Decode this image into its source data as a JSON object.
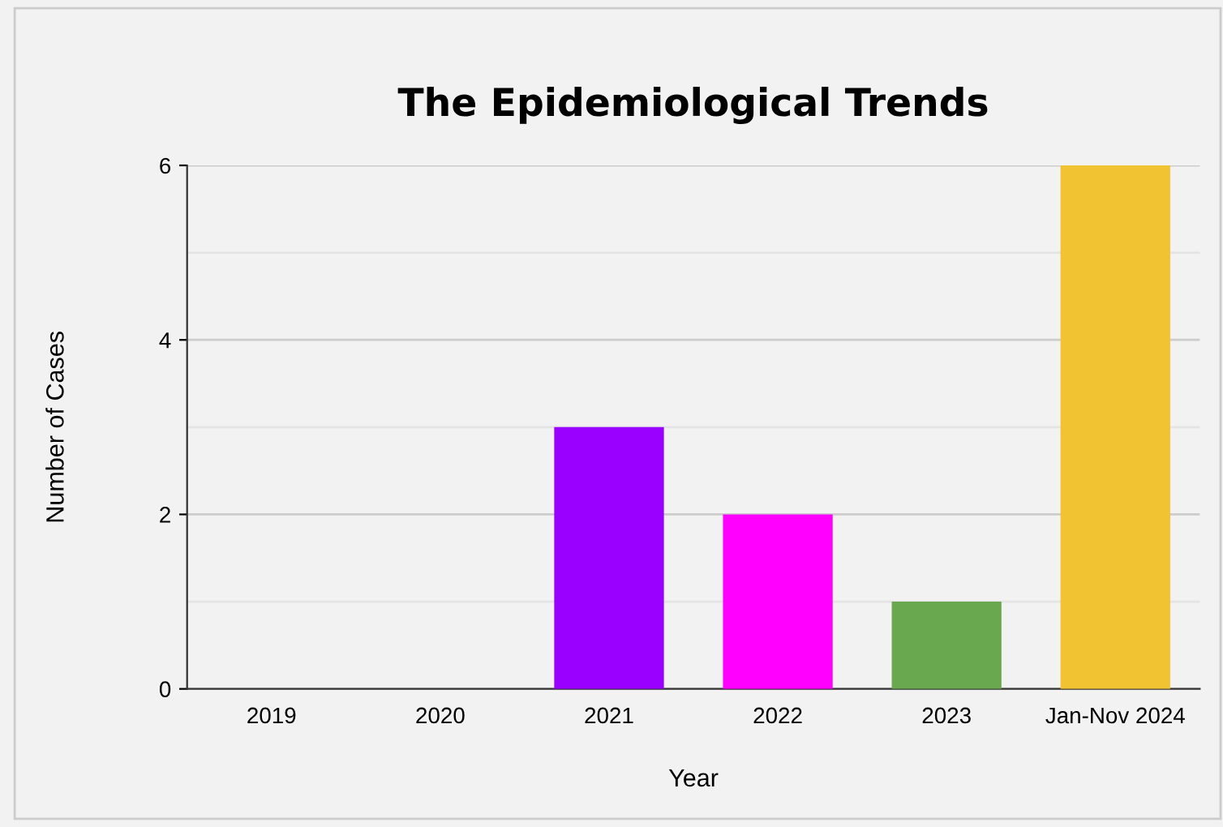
{
  "chart_data": {
    "type": "bar",
    "title": "The Epidemiological Trends",
    "xlabel": "Year",
    "ylabel": "Number of Cases",
    "categories": [
      "2019",
      "2020",
      "2021",
      "2022",
      "2023",
      "Jan-Nov 2024"
    ],
    "values": [
      0,
      0,
      3,
      2,
      1,
      6
    ],
    "colors": [
      "#3366cc",
      "#dc3912",
      "#9900ff",
      "#ff00ff",
      "#6aa84f",
      "#f1c232"
    ],
    "ylim": [
      0,
      6
    ],
    "yticks": [
      0,
      {
        "value": 1,
        "label": null
      },
      2,
      {
        "value": 3,
        "label": null
      },
      4,
      {
        "value": 5,
        "label": null
      },
      6
    ],
    "grid": "y",
    "legend": false
  }
}
